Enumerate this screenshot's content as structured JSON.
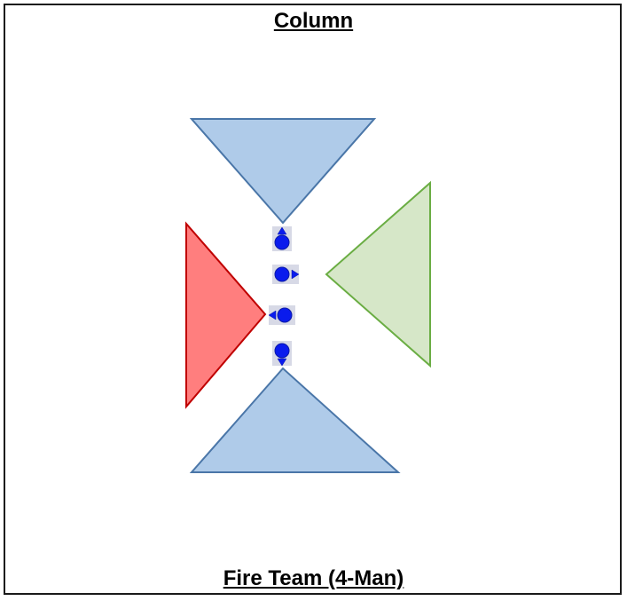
{
  "header": {
    "title": "Column"
  },
  "footer": {
    "caption": "Fire Team (4-Man)"
  },
  "colors": {
    "front_sector_fill": "#afcbe9",
    "front_sector_stroke": "#4a76a8",
    "left_sector_fill": "#ff7e7e",
    "left_sector_stroke": "#c00000",
    "right_sector_fill": "#d6e7c8",
    "right_sector_stroke": "#6aad43",
    "soldier_fill": "#0a1bed",
    "soldier_stroke": "#0b1aa8",
    "marker_bg": "#d7d9e6"
  },
  "formation": {
    "name": "Column",
    "sectors": [
      "front",
      "right",
      "left",
      "rear"
    ],
    "soldiers": [
      {
        "position": 1,
        "facing": "up"
      },
      {
        "position": 2,
        "facing": "right"
      },
      {
        "position": 3,
        "facing": "left"
      },
      {
        "position": 4,
        "facing": "down"
      }
    ]
  }
}
